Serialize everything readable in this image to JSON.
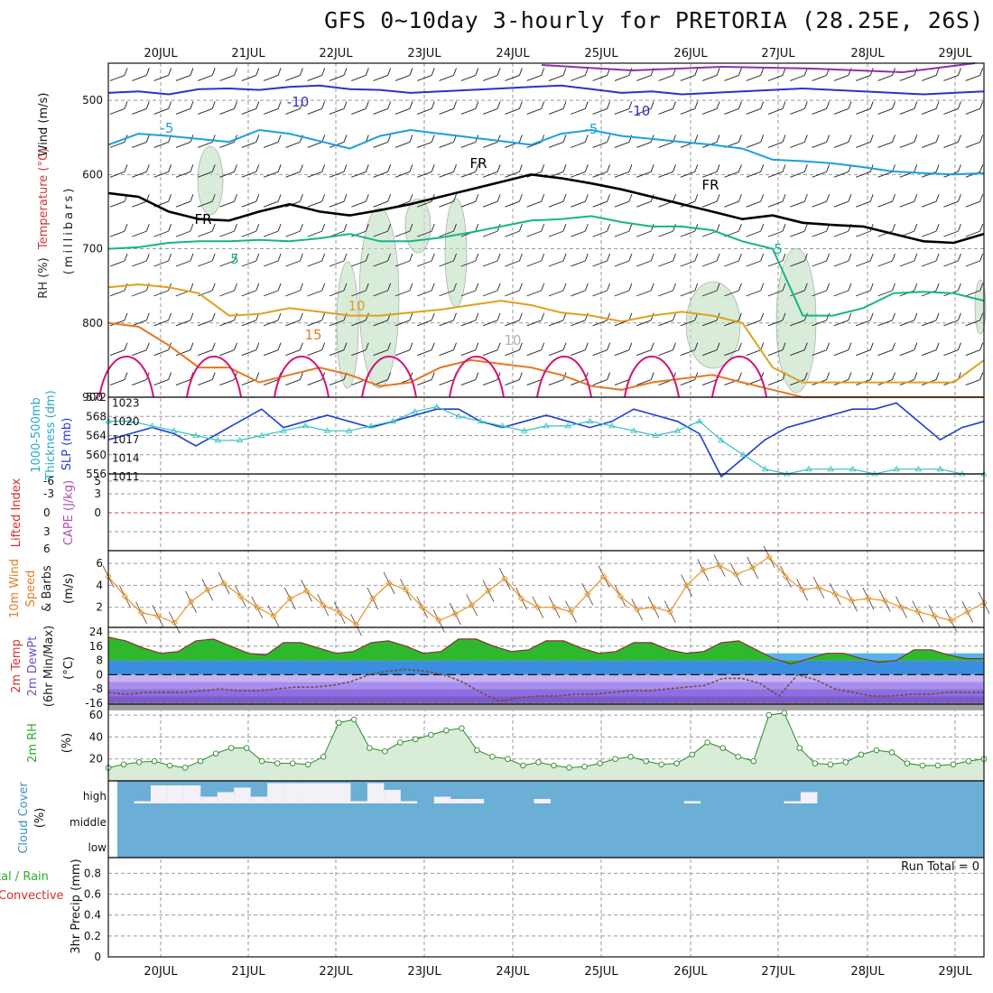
{
  "title": "GFS 0~10day 3-hourly for PRETORIA (28.25E, 26S)",
  "dates": [
    "20JUL",
    "21JUL",
    "22JUL",
    "23JUL",
    "24JUL",
    "25JUL",
    "26JUL",
    "27JUL",
    "28JUL",
    "29JUL"
  ],
  "run_total": "Run Total = 0",
  "colors": {
    "temp_minus10": "#3030c8",
    "temp_minus5": "#1e9ee0",
    "temp_5": "#14b48c",
    "temp_10": "#e0a020",
    "temp_15": "#e67820",
    "temp_20": "#d4147a",
    "freeze": "#000000",
    "rh": "#bfe0bf",
    "slp": "#1a3fd0",
    "thickness": "#30c0c0",
    "wind10": "#e6962a",
    "cloud": "#6baed6",
    "cloud_clear": "#f4f0f8",
    "t2m": "#2eb82e",
    "dewpt": "#9070d8"
  },
  "chart_data": [
    {
      "type": "line",
      "panel": "upper-air",
      "ylabel_parts": [
        "Wind (m/s)",
        "Temperature (°C)",
        "RH (%)",
        "(millibars)"
      ],
      "yticks": [
        500,
        600,
        700,
        800,
        900
      ],
      "ylim": [
        900,
        450
      ],
      "isotherm_labels": [
        "-10",
        "-10",
        "-5",
        "-5",
        "FR",
        "FR",
        "FR",
        "5",
        "5",
        "10",
        "15",
        "10"
      ],
      "series": [
        {
          "name": "-10",
          "values": [
            490,
            488,
            492,
            485,
            484,
            486,
            482,
            480,
            485,
            486,
            490,
            488,
            486,
            484,
            482,
            480,
            485,
            490,
            488,
            492,
            490,
            488,
            486,
            484,
            486,
            488,
            490,
            492,
            490,
            488
          ]
        },
        {
          "name": "-5",
          "values": [
            560,
            545,
            548,
            552,
            556,
            540,
            545,
            555,
            565,
            548,
            540,
            545,
            550,
            555,
            560,
            545,
            540,
            548,
            552,
            556,
            560,
            565,
            580,
            582,
            585,
            590,
            596,
            598,
            600,
            598
          ]
        },
        {
          "name": "FR",
          "values": [
            625,
            630,
            650,
            660,
            662,
            650,
            640,
            650,
            655,
            648,
            640,
            630,
            620,
            610,
            600,
            605,
            612,
            620,
            630,
            640,
            650,
            660,
            655,
            665,
            668,
            670,
            680,
            690,
            692,
            680
          ]
        },
        {
          "name": "5",
          "values": [
            700,
            698,
            692,
            690,
            690,
            688,
            690,
            686,
            680,
            690,
            690,
            685,
            678,
            670,
            662,
            660,
            656,
            664,
            670,
            670,
            675,
            690,
            700,
            790,
            790,
            780,
            760,
            758,
            760,
            770
          ]
        },
        {
          "name": "10",
          "values": [
            752,
            748,
            752,
            760,
            790,
            788,
            780,
            785,
            790,
            790,
            786,
            782,
            776,
            770,
            776,
            786,
            790,
            798,
            790,
            785,
            790,
            800,
            860,
            880,
            880,
            880,
            880,
            880,
            880,
            850
          ]
        },
        {
          "name": "15",
          "values": [
            800,
            805,
            830,
            860,
            860,
            880,
            870,
            860,
            870,
            885,
            880,
            860,
            850,
            855,
            860,
            870,
            885,
            890,
            880,
            875,
            870,
            880,
            890,
            900,
            900,
            900,
            900,
            900,
            900,
            900
          ]
        }
      ]
    },
    {
      "type": "line",
      "panel": "slp-thickness",
      "ylabel": "1000-500mb Thickness (dm)",
      "ylabel2": "SLP (mb)",
      "yticks_left": [
        556,
        560,
        564,
        568,
        572
      ],
      "yticks_right": [
        1011,
        1014,
        1017,
        1020,
        1023
      ],
      "series": [
        {
          "name": "SLP",
          "values": [
            1017,
            1018,
            1019,
            1018,
            1016,
            1018,
            1020,
            1022,
            1019,
            1020,
            1021,
            1020,
            1019,
            1020,
            1021,
            1022,
            1022,
            1020,
            1019,
            1020,
            1021,
            1020,
            1019,
            1020,
            1022,
            1021,
            1020,
            1018,
            1011,
            1014,
            1017,
            1019,
            1020,
            1021,
            1022,
            1022,
            1023,
            1020,
            1017,
            1019,
            1020
          ]
        },
        {
          "name": "Thickness",
          "values": [
            567,
            567,
            566,
            565,
            564,
            563,
            563,
            564,
            565,
            566,
            565,
            565,
            566,
            567,
            569,
            570,
            568,
            567,
            566,
            565,
            566,
            566,
            567,
            566,
            565,
            564,
            565,
            567,
            563,
            560,
            557,
            556,
            557,
            557,
            557,
            556,
            557,
            557,
            557,
            556,
            556
          ]
        }
      ]
    },
    {
      "type": "line",
      "panel": "stability",
      "ylabel": "Lifted Index",
      "ylabel2": "CAPE (J/kg)",
      "yticks": [
        "-6",
        "-3",
        "0",
        "3",
        "6"
      ],
      "yticks_right": [
        "5",
        "3",
        "0"
      ],
      "series": [
        {
          "name": "Lifted Index",
          "values": []
        }
      ]
    },
    {
      "type": "line",
      "panel": "wind10m",
      "ylabel": "10m Wind Speed & Barbs",
      "yunit": "(m/s)",
      "yticks": [
        2,
        4,
        6
      ],
      "series": [
        {
          "name": "10m Wind",
          "values": [
            4.8,
            3.0,
            1.5,
            1.2,
            0.6,
            2.5,
            3.6,
            4.2,
            3.0,
            2.0,
            1.2,
            2.8,
            3.5,
            2.2,
            1.5,
            0.4,
            2.8,
            4.2,
            3.6,
            2.0,
            0.8,
            1.4,
            2.2,
            3.5,
            4.6,
            2.8,
            2.0,
            2.0,
            1.6,
            3.2,
            4.8,
            3.0,
            1.8,
            2.0,
            1.6,
            4.0,
            5.4,
            5.8,
            5.0,
            5.6,
            6.6,
            4.8,
            3.6,
            3.8,
            3.2,
            2.6,
            2.8,
            2.6,
            2.0,
            1.6,
            1.2,
            0.8,
            1.6,
            2.4
          ]
        }
      ]
    },
    {
      "type": "area",
      "panel": "temp2m",
      "ylabel": "2m Temp 2m DewPt (6hr Min/Max)",
      "yunit": "(°C)",
      "yticks": [
        -16,
        -8,
        0,
        8,
        16,
        24
      ],
      "series": [
        {
          "name": "2m Temp",
          "values": [
            21,
            19,
            15,
            12,
            13,
            19,
            20,
            16,
            12,
            11,
            18,
            18,
            15,
            12,
            13,
            18,
            19,
            16,
            12,
            13,
            20,
            20,
            16,
            13,
            14,
            19,
            19,
            15,
            12,
            13,
            18,
            18,
            14,
            12,
            13,
            18,
            19,
            14,
            9,
            6,
            9,
            12,
            12,
            9,
            7,
            8,
            14,
            14,
            11,
            9,
            9
          ]
        },
        {
          "name": "2m DewPt",
          "values": [
            -10,
            -11,
            -10,
            -10,
            -10,
            -9,
            -8,
            -9,
            -9,
            -8,
            -7,
            -7,
            -6,
            -4,
            0,
            2,
            3,
            2,
            0,
            -4,
            -10,
            -15,
            -13,
            -12,
            -12,
            -11,
            -11,
            -10,
            -9,
            -9,
            -8,
            -7,
            -6,
            -2,
            -2,
            -5,
            -12,
            0,
            -3,
            -8,
            -10,
            -12,
            -12,
            -11,
            -11,
            -10,
            -10,
            -10
          ]
        }
      ]
    },
    {
      "type": "area",
      "panel": "rh2m",
      "ylabel": "2m RH",
      "yunit": "(%)",
      "yticks": [
        20,
        40,
        60
      ],
      "series": [
        {
          "name": "2m RH",
          "values": [
            12,
            15,
            17,
            18,
            14,
            12,
            18,
            25,
            30,
            30,
            18,
            16,
            16,
            15,
            22,
            53,
            56,
            30,
            27,
            35,
            38,
            42,
            46,
            48,
            28,
            22,
            20,
            14,
            17,
            14,
            12,
            13,
            16,
            20,
            22,
            18,
            15,
            16,
            24,
            35,
            30,
            22,
            18,
            60,
            62,
            30,
            16,
            15,
            17,
            24,
            28,
            26,
            16,
            14,
            14,
            15,
            18,
            20
          ]
        }
      ]
    },
    {
      "type": "bar",
      "panel": "cloud",
      "ylabel": "Cloud Cover",
      "yunit": "(%)",
      "yticks": [
        "high",
        "middle",
        "low"
      ],
      "series": [
        {
          "name": "high",
          "values": [
            0,
            0.1,
            0.8,
            0.8,
            0.8,
            0.3,
            0.5,
            0.7,
            0.3,
            0.9,
            0.9,
            0.9,
            0.9,
            0.9,
            0.1,
            0.9,
            0.6,
            0.1,
            0,
            0.3,
            0.2,
            0.2,
            0,
            0,
            0,
            0.2,
            0,
            0,
            0,
            0,
            0,
            0,
            0,
            0,
            0.1,
            0,
            0,
            0,
            0,
            0,
            0.1,
            0.5,
            0,
            0,
            0,
            0,
            0,
            0,
            0,
            0,
            0,
            0
          ]
        }
      ]
    },
    {
      "type": "bar",
      "panel": "precip",
      "ylabel_parts": [
        "Total / Rain",
        "Convective",
        "3hr Precip (mm)"
      ],
      "yticks": [
        0,
        0.2,
        0.4,
        0.6,
        0.8
      ],
      "series": [
        {
          "name": "Total / Rain",
          "values": []
        }
      ]
    }
  ]
}
